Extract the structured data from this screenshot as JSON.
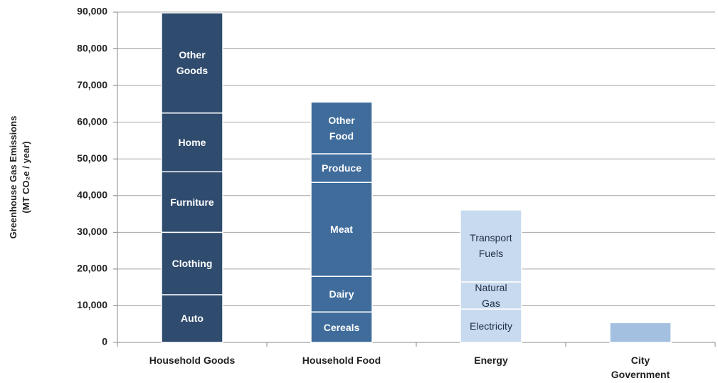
{
  "chart_data": {
    "type": "stacked_bar",
    "y_axis_label": "Greenhouse Gas Emissions\n(MT CO₂e / year)",
    "categories": [
      "Household Goods",
      "Household Food",
      "Energy",
      "City Government\nSupply Chain"
    ],
    "stacks": [
      {
        "color": "#2f4b6e",
        "text_color": "#ffffff",
        "segments": [
          {
            "name": "Auto",
            "value": 13000
          },
          {
            "name": "Clothing",
            "value": 17000
          },
          {
            "name": "Furniture",
            "value": 16500
          },
          {
            "name": "Home",
            "value": 16000
          },
          {
            "name": "Other\nGoods",
            "value": 27300
          }
        ]
      },
      {
        "color": "#3f6c9b",
        "text_color": "#ffffff",
        "segments": [
          {
            "name": "Cereals",
            "value": 8300
          },
          {
            "name": "Dairy",
            "value": 9700
          },
          {
            "name": "Meat",
            "value": 25600
          },
          {
            "name": "Produce",
            "value": 7800
          },
          {
            "name": "Other\nFood",
            "value": 14100
          }
        ]
      },
      {
        "color": "#c7daef",
        "text_color": "#1f2d40",
        "segments": [
          {
            "name": "Electricity",
            "value": 9100
          },
          {
            "name": "Natural\nGas",
            "value": 7400
          },
          {
            "name": "Transport\nFuels",
            "value": 19600
          }
        ]
      },
      {
        "color": "#a4c0e1",
        "text_color": "#1f2d40",
        "segments": [
          {
            "value": 5400
          }
        ]
      }
    ],
    "ylim": [
      0,
      90000
    ],
    "yticks": [
      {
        "value": 0,
        "label": "0"
      },
      {
        "value": 10000,
        "label": "10,000"
      },
      {
        "value": 20000,
        "label": "20,000"
      },
      {
        "value": 30000,
        "label": "30,000"
      },
      {
        "value": 40000,
        "label": "40,000"
      },
      {
        "value": 50000,
        "label": "50,000"
      },
      {
        "value": 60000,
        "label": "60,000"
      },
      {
        "value": 70000,
        "label": "70,000"
      },
      {
        "value": 80000,
        "label": "80,000"
      },
      {
        "value": 90000,
        "label": "90,000"
      }
    ],
    "grid": true
  }
}
